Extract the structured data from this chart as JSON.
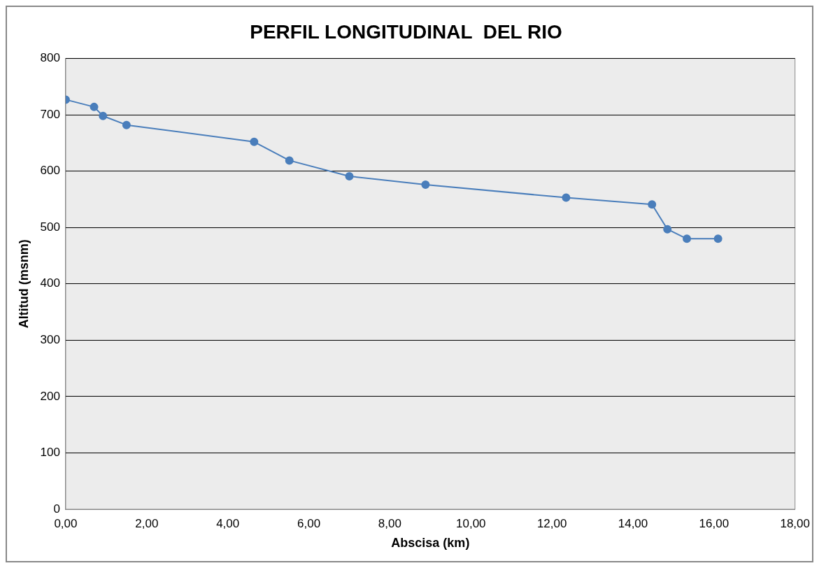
{
  "chart_data": {
    "type": "line",
    "title": "PERFIL LONGITUDINAL  DEL RIO",
    "xlabel": "Abscisa (km)",
    "ylabel": "Altitud (msnm)",
    "series": [
      {
        "color": "#4a7ebb",
        "x": [
          0,
          0.7,
          0.92,
          1.5,
          4.65,
          5.52,
          7.0,
          8.88,
          12.35,
          14.47,
          14.85,
          15.33,
          16.1
        ],
        "values": [
          727,
          714,
          698,
          682,
          652,
          619,
          591,
          576,
          553,
          541,
          497,
          480,
          480
        ]
      }
    ],
    "xlim": [
      0,
      18
    ],
    "xticks": [
      {
        "value": 0,
        "label": "0,00"
      },
      {
        "value": 2,
        "label": "2,00"
      },
      {
        "value": 4,
        "label": "4,00"
      },
      {
        "value": 6,
        "label": "6,00"
      },
      {
        "value": 8,
        "label": "8,00"
      },
      {
        "value": 10,
        "label": "10,00"
      },
      {
        "value": 12,
        "label": "12,00"
      },
      {
        "value": 14,
        "label": "14,00"
      },
      {
        "value": 16,
        "label": "16,00"
      },
      {
        "value": 18,
        "label": "18,00"
      }
    ],
    "ylim": [
      0,
      800
    ],
    "yticks": [
      0,
      100,
      200,
      300,
      400,
      500,
      600,
      700,
      800
    ],
    "grid": "y",
    "legend": false,
    "marker": "circle",
    "line_style": "solid"
  }
}
